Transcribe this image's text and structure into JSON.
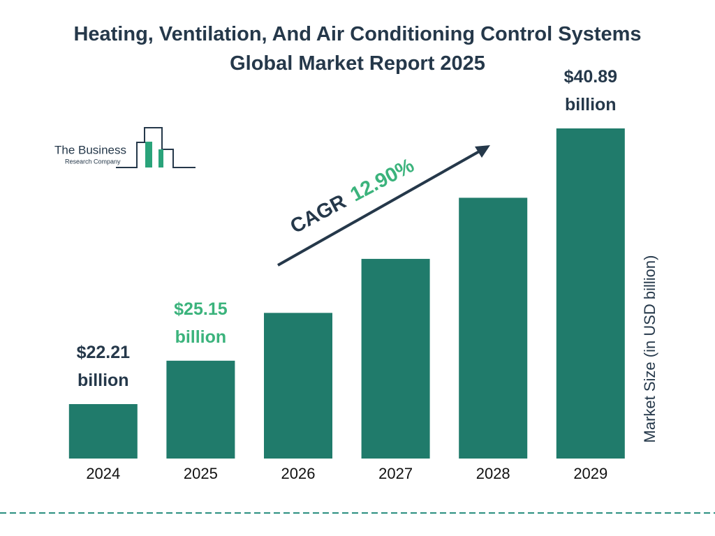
{
  "chart_data": {
    "type": "bar",
    "title": "Heating, Ventilation, And Air Conditioning Control Systems Global Market Report 2025",
    "categories": [
      "2024",
      "2025",
      "2026",
      "2027",
      "2028",
      "2029"
    ],
    "values": [
      22.21,
      25.15,
      28.39,
      32.05,
      36.19,
      40.89
    ],
    "value_labels": [
      "$22.21 billion",
      "$25.15 billion",
      null,
      null,
      null,
      "$40.89 billion"
    ],
    "value_label_colors": [
      "#25384a",
      "#3bb37c",
      null,
      null,
      null,
      "#25384a"
    ],
    "color": "#207b6b",
    "y_axis_label": "Market Size (in USD billion)",
    "cagr_label": "CAGR",
    "cagr_value": "12.90%"
  },
  "logo": {
    "line1": "The Business",
    "line2": "Research Company"
  }
}
